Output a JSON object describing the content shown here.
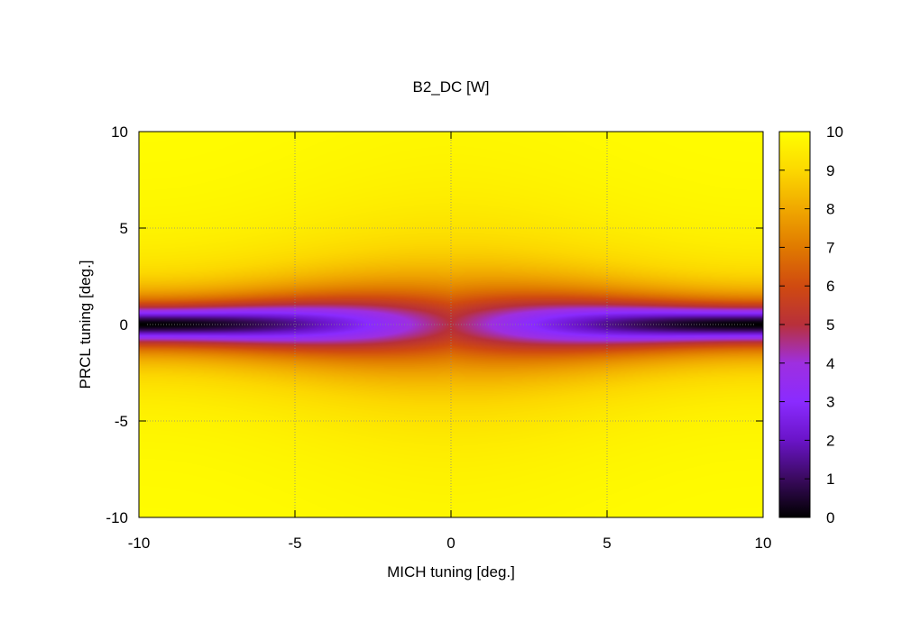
{
  "chart_data": {
    "type": "heatmap",
    "title": "B2_DC [W]",
    "xlabel": "MICH tuning [deg.]",
    "ylabel": "PRCL tuning [deg.]",
    "xlim": [
      -10,
      10
    ],
    "ylim": [
      -10,
      10
    ],
    "x_ticks": [
      "-10",
      "-5",
      "0",
      "5",
      "10"
    ],
    "y_ticks": [
      "-10",
      "-5",
      "0",
      "5",
      "10"
    ],
    "grid": true,
    "colorbar": {
      "range": [
        0,
        10
      ],
      "ticks": [
        "0",
        "1",
        "2",
        "3",
        "4",
        "5",
        "6",
        "7",
        "8",
        "9",
        "10"
      ]
    },
    "colormap": [
      "#000000",
      "#4b0082",
      "#8a2be2",
      "#9b30ff",
      "#b030b0",
      "#c0392b",
      "#d2691e",
      "#e69500",
      "#f5c000",
      "#ffee00",
      "#ffff00"
    ],
    "field_description": "Power ~10 W everywhere except a narrow band near PRCL=0 whose depth grows with |MICH|; minimum ~0 W at MICH=±10, PRCL=0; ~5 W at MICH=0, PRCL=0",
    "samples": [
      {
        "x": -10,
        "y": 0,
        "value": 0.2
      },
      {
        "x": -5,
        "y": 0,
        "value": 3.8
      },
      {
        "x": 0,
        "y": 0,
        "value": 5.0
      },
      {
        "x": 5,
        "y": 0,
        "value": 3.8
      },
      {
        "x": 10,
        "y": 0,
        "value": 0.2
      },
      {
        "x": 0,
        "y": 5,
        "value": 9.3
      },
      {
        "x": 0,
        "y": -5,
        "value": 9.3
      },
      {
        "x": -10,
        "y": 10,
        "value": 10
      },
      {
        "x": 10,
        "y": -10,
        "value": 10
      }
    ]
  }
}
